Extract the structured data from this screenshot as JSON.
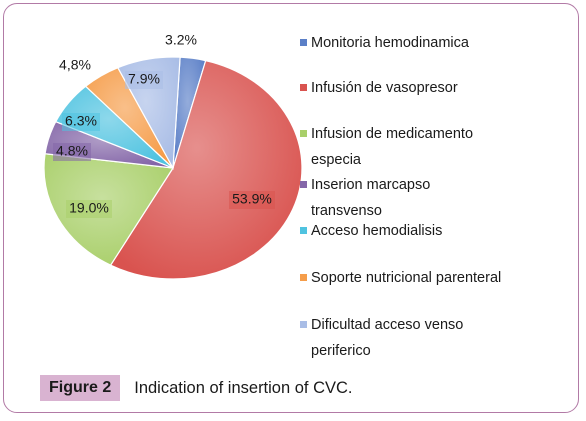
{
  "chart_data": {
    "type": "pie",
    "categories": [
      "Monitoria hemodinamica",
      "Infusión de vasopresor",
      "Infusion de medicamento especia",
      "Inserion marcapso transvenso",
      "Acceso hemodialisis",
      "Soporte nutricional parenteral",
      "Dificultad acceso venso periferico"
    ],
    "values": [
      3.2,
      53.9,
      19.0,
      4.8,
      6.3,
      4.8,
      7.9
    ],
    "data_labels": [
      "3.2%",
      "53.9%",
      "19.0%",
      "4.8%",
      "6.3%",
      "4,8%",
      "7.9%"
    ],
    "colors": [
      "#5b7fc7",
      "#d9534f",
      "#a9cf6a",
      "#8466a8",
      "#4fc3e0",
      "#f59d4a",
      "#a9bde6"
    ],
    "legend_position": "right"
  },
  "legend": [
    {
      "line1": "Monitoria hemodinamica",
      "line2": ""
    },
    {
      "line1": "Infusión de vasopresor",
      "line2": ""
    },
    {
      "line1": "Infusion de medicamento",
      "line2": "especia"
    },
    {
      "line1": "Inserion marcapso",
      "line2": "transvenso"
    },
    {
      "line1": "Acceso hemodialisis",
      "line2": ""
    },
    {
      "line1": "Soporte nutricional parenteral",
      "line2": ""
    },
    {
      "line1": "Dificultad acceso venso",
      "line2": "periferico"
    }
  ],
  "caption": {
    "label": "Figure 2",
    "text": "Indication of insertion of CVC."
  }
}
